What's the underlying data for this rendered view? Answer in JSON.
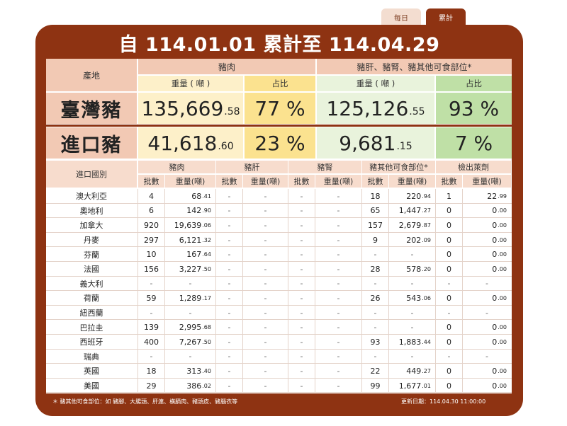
{
  "tabs": {
    "daily": "每日",
    "cumulative": "累計"
  },
  "title": "自 114.01.01 累計至 114.04.29",
  "summary": {
    "origin_header": "產地",
    "pork_header": "豬肉",
    "offal_header": "豬肝、豬腎、豬其他可食部位*",
    "weight_label": "重量 ( 噸 )",
    "share_label": "占比",
    "rows": [
      {
        "label": "臺灣豬",
        "pork_weight_int": "135,669",
        "pork_weight_frac": ".58",
        "pork_share": "77 %",
        "offal_weight_int": "125,126",
        "offal_weight_frac": ".55",
        "offal_share": "93 %"
      },
      {
        "label": "進口豬",
        "pork_weight_int": "41,618",
        "pork_weight_frac": ".60",
        "pork_share": "23 %",
        "offal_weight_int": "9,681",
        "offal_weight_frac": ".15",
        "offal_share": "7 %"
      }
    ]
  },
  "detail": {
    "country_header": "進口國別",
    "groups": [
      "豬肉",
      "豬肝",
      "豬腎",
      "豬其他可食部位*",
      "檢出萊劑"
    ],
    "batch_label": "批數",
    "weight_label": "重量(噸)",
    "rows": [
      {
        "country": "澳大利亞",
        "cells": [
          [
            "4",
            "68",
            ".41"
          ],
          [
            "-",
            "-",
            ""
          ],
          [
            "-",
            "-",
            ""
          ],
          [
            "18",
            "220",
            ".94"
          ],
          [
            "1",
            "22",
            ".99"
          ]
        ]
      },
      {
        "country": "奧地利",
        "cells": [
          [
            "6",
            "142",
            ".90"
          ],
          [
            "-",
            "-",
            ""
          ],
          [
            "-",
            "-",
            ""
          ],
          [
            "65",
            "1,447",
            ".27"
          ],
          [
            "0",
            "0",
            ".00"
          ]
        ]
      },
      {
        "country": "加拿大",
        "cells": [
          [
            "920",
            "19,639",
            ".06"
          ],
          [
            "-",
            "-",
            ""
          ],
          [
            "-",
            "-",
            ""
          ],
          [
            "157",
            "2,679",
            ".87"
          ],
          [
            "0",
            "0",
            ".00"
          ]
        ]
      },
      {
        "country": "丹麥",
        "cells": [
          [
            "297",
            "6,121",
            ".32"
          ],
          [
            "-",
            "-",
            ""
          ],
          [
            "-",
            "-",
            ""
          ],
          [
            "9",
            "202",
            ".09"
          ],
          [
            "0",
            "0",
            ".00"
          ]
        ]
      },
      {
        "country": "芬蘭",
        "cells": [
          [
            "10",
            "167",
            ".64"
          ],
          [
            "-",
            "-",
            ""
          ],
          [
            "-",
            "-",
            ""
          ],
          [
            "-",
            "-",
            ""
          ],
          [
            "0",
            "0",
            ".00"
          ]
        ]
      },
      {
        "country": "法國",
        "cells": [
          [
            "156",
            "3,227",
            ".50"
          ],
          [
            "-",
            "-",
            ""
          ],
          [
            "-",
            "-",
            ""
          ],
          [
            "28",
            "578",
            ".20"
          ],
          [
            "0",
            "0",
            ".00"
          ]
        ]
      },
      {
        "country": "義大利",
        "cells": [
          [
            "-",
            "-",
            ""
          ],
          [
            "-",
            "-",
            ""
          ],
          [
            "-",
            "-",
            ""
          ],
          [
            "-",
            "-",
            ""
          ],
          [
            "-",
            "-",
            ""
          ]
        ]
      },
      {
        "country": "荷蘭",
        "cells": [
          [
            "59",
            "1,289",
            ".17"
          ],
          [
            "-",
            "-",
            ""
          ],
          [
            "-",
            "-",
            ""
          ],
          [
            "26",
            "543",
            ".06"
          ],
          [
            "0",
            "0",
            ".00"
          ]
        ]
      },
      {
        "country": "紐西蘭",
        "cells": [
          [
            "-",
            "-",
            ""
          ],
          [
            "-",
            "-",
            ""
          ],
          [
            "-",
            "-",
            ""
          ],
          [
            "-",
            "-",
            ""
          ],
          [
            "-",
            "-",
            ""
          ]
        ]
      },
      {
        "country": "巴拉圭",
        "cells": [
          [
            "139",
            "2,995",
            ".68"
          ],
          [
            "-",
            "-",
            ""
          ],
          [
            "-",
            "-",
            ""
          ],
          [
            "-",
            "-",
            ""
          ],
          [
            "0",
            "0",
            ".00"
          ]
        ]
      },
      {
        "country": "西班牙",
        "cells": [
          [
            "400",
            "7,267",
            ".50"
          ],
          [
            "-",
            "-",
            ""
          ],
          [
            "-",
            "-",
            ""
          ],
          [
            "93",
            "1,883",
            ".44"
          ],
          [
            "0",
            "0",
            ".00"
          ]
        ]
      },
      {
        "country": "瑞典",
        "cells": [
          [
            "-",
            "-",
            ""
          ],
          [
            "-",
            "-",
            ""
          ],
          [
            "-",
            "-",
            ""
          ],
          [
            "-",
            "-",
            ""
          ],
          [
            "-",
            "-",
            ""
          ]
        ]
      },
      {
        "country": "英國",
        "cells": [
          [
            "18",
            "313",
            ".40"
          ],
          [
            "-",
            "-",
            ""
          ],
          [
            "-",
            "-",
            ""
          ],
          [
            "22",
            "449",
            ".27"
          ],
          [
            "0",
            "0",
            ".00"
          ]
        ]
      },
      {
        "country": "美國",
        "cells": [
          [
            "29",
            "386",
            ".02"
          ],
          [
            "-",
            "-",
            ""
          ],
          [
            "-",
            "-",
            ""
          ],
          [
            "99",
            "1,677",
            ".01"
          ],
          [
            "0",
            "0",
            ".00"
          ]
        ]
      }
    ]
  },
  "footnote": "＊ 豬其他可食部位：如 豬腳、大腸頭、肝連、橫膈肉、豬頭皮、豬腦衣等",
  "updated": "更新日期：114.04.30 11:00:00",
  "colors": {
    "brand": "#8e3312",
    "header": "#f2c9b4",
    "pork": "#fdf0c9",
    "pork_share": "#fbe28f",
    "offal": "#e9f3dc",
    "offal_share": "#bfe0a6"
  }
}
